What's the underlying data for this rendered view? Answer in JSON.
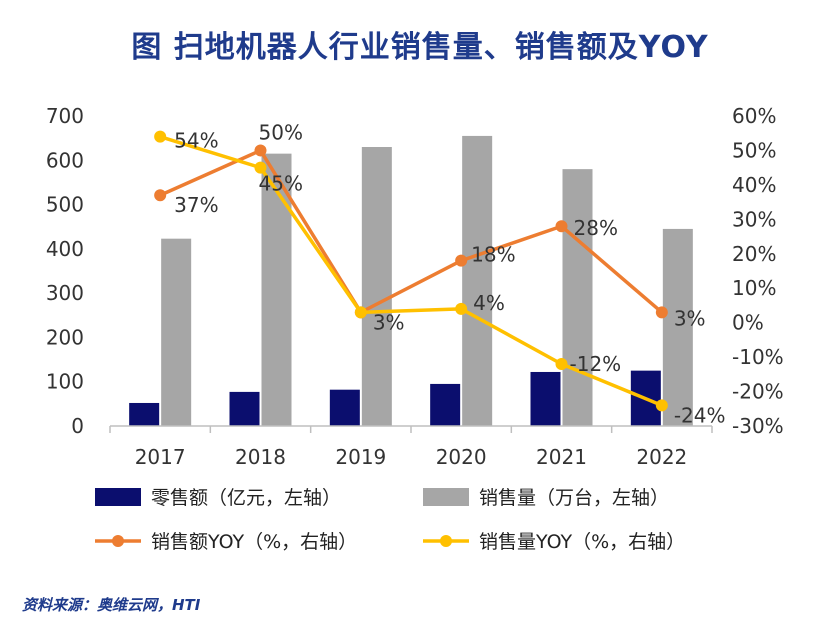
{
  "chart_data": {
    "type": "bar",
    "title": "图 扫地机器人行业销售量、销售额及YOY",
    "categories": [
      "2017",
      "2018",
      "2019",
      "2020",
      "2021",
      "2022"
    ],
    "ylim_left": [
      0,
      700
    ],
    "yticks_left": [
      "700",
      "600",
      "500",
      "400",
      "300",
      "200",
      "100",
      "0"
    ],
    "ylim_right": [
      -30,
      60
    ],
    "yticks_right": [
      "60%",
      "50%",
      "40%",
      "30%",
      "20%",
      "10%",
      "0%",
      "-10%",
      "-20%",
      "-30%"
    ],
    "grid": false,
    "legend_position": "bottom",
    "series": [
      {
        "name": "零售额（亿元，左轴）",
        "type": "bar",
        "axis": "left",
        "color": "#0b0e6e",
        "values": [
          52,
          77,
          82,
          95,
          122,
          125
        ]
      },
      {
        "name": "销售量（万台，左轴）",
        "type": "bar",
        "axis": "left",
        "color": "#a6a6a6",
        "values": [
          423,
          615,
          630,
          655,
          580,
          445
        ]
      },
      {
        "name": "销售额YOY（%，右轴）",
        "type": "line",
        "axis": "right",
        "color": "#ed7d31",
        "values": [
          37,
          50,
          3,
          18,
          28,
          3
        ],
        "labels": [
          "37%",
          "50%",
          "3%",
          "18%",
          "28%",
          "3%"
        ]
      },
      {
        "name": "销售量YOY（%，右轴）",
        "type": "line",
        "axis": "right",
        "color": "#ffc000",
        "values": [
          54,
          45,
          3,
          4,
          -12,
          -24
        ],
        "labels": [
          "54%",
          "45%",
          "",
          "4%",
          "-12%",
          "-24%"
        ]
      }
    ]
  },
  "source": "资料来源：奥维云网，HTI"
}
